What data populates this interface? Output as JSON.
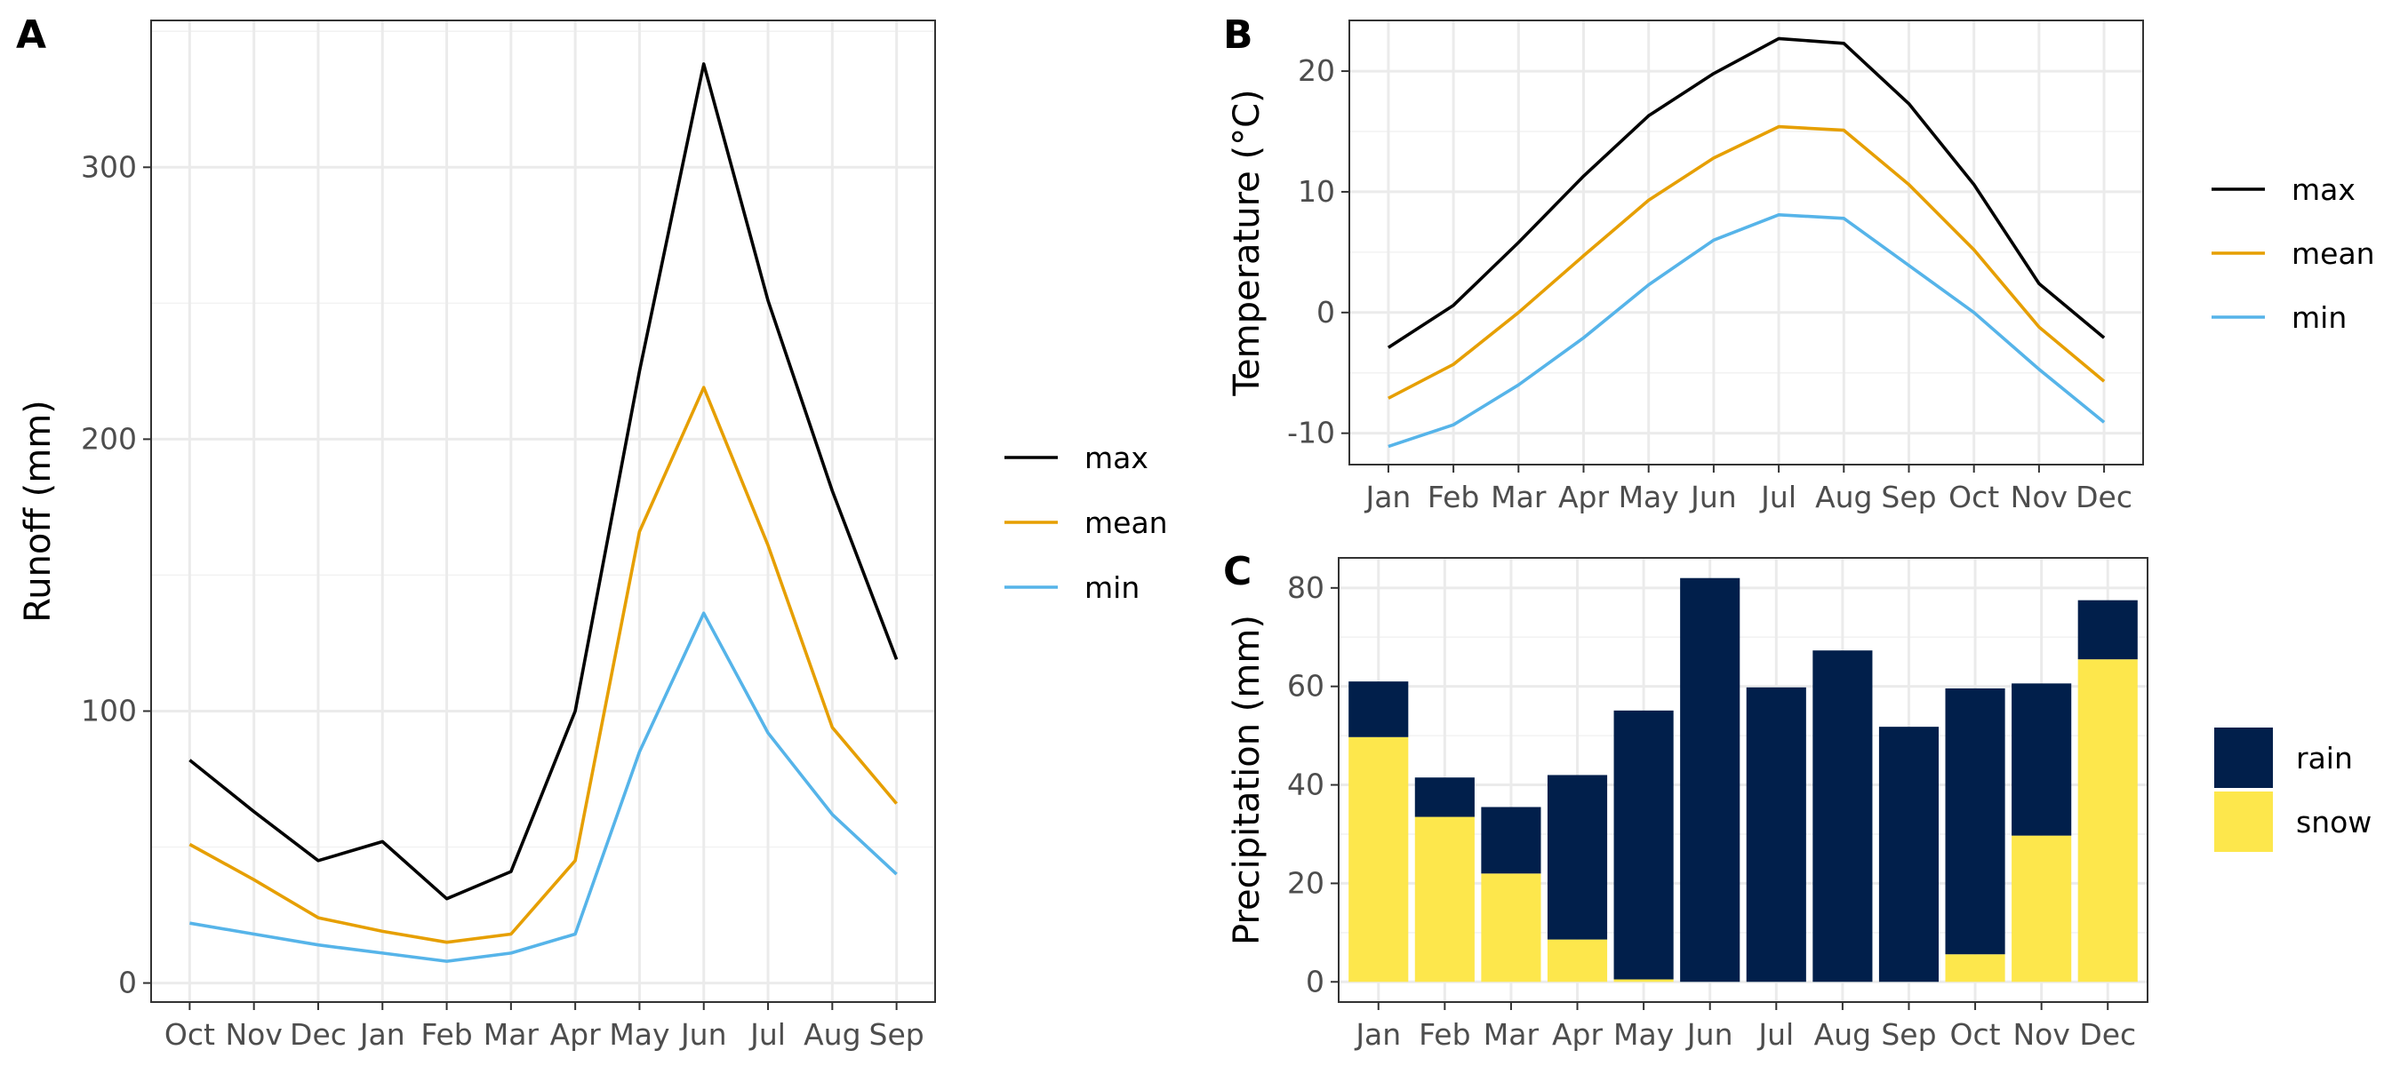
{
  "chart_data": [
    {
      "panel_label": "A",
      "type": "line",
      "categories": [
        "Oct",
        "Nov",
        "Dec",
        "Jan",
        "Feb",
        "Mar",
        "Apr",
        "May",
        "Jun",
        "Jul",
        "Aug",
        "Sep"
      ],
      "series": [
        {
          "name": "max",
          "color": "#000000",
          "values": [
            82,
            63,
            45,
            52,
            31,
            41,
            100,
            225,
            338,
            251,
            181,
            119
          ]
        },
        {
          "name": "mean",
          "color": "#E69F00",
          "values": [
            51,
            38,
            24,
            19,
            15,
            18,
            45,
            166,
            219,
            161,
            94,
            66
          ]
        },
        {
          "name": "min",
          "color": "#56B4E9",
          "values": [
            22,
            18,
            14,
            11,
            8,
            11,
            18,
            85,
            136,
            92,
            62,
            40
          ]
        }
      ],
      "xlabel": "",
      "ylabel": "Runoff (mm)",
      "ylim": [
        -7,
        354
      ],
      "yticks": [
        0,
        100,
        200,
        300
      ],
      "grid": true,
      "legend": "right"
    },
    {
      "panel_label": "B",
      "type": "line",
      "categories": [
        "Jan",
        "Feb",
        "Mar",
        "Apr",
        "May",
        "Jun",
        "Jul",
        "Aug",
        "Sep",
        "Oct",
        "Nov",
        "Dec"
      ],
      "series": [
        {
          "name": "max",
          "color": "#000000",
          "values": [
            -2.9,
            0.6,
            5.8,
            11.3,
            16.3,
            19.8,
            22.7,
            22.3,
            17.3,
            10.6,
            2.4,
            -2.1
          ]
        },
        {
          "name": "mean",
          "color": "#E69F00",
          "values": [
            -7.1,
            -4.3,
            0.0,
            4.7,
            9.3,
            12.8,
            15.4,
            15.1,
            10.6,
            5.2,
            -1.2,
            -5.7
          ]
        },
        {
          "name": "min",
          "color": "#56B4E9",
          "values": [
            -11.1,
            -9.3,
            -6.0,
            -2.1,
            2.3,
            6.0,
            8.1,
            7.8,
            3.9,
            0.0,
            -4.7,
            -9.1
          ]
        }
      ],
      "xlabel": "",
      "ylabel": "Temperature (°C)",
      "ylim": [
        -12.6,
        24.2
      ],
      "yticks": [
        -10,
        0,
        10,
        20
      ],
      "grid": true,
      "legend": "right"
    },
    {
      "panel_label": "C",
      "type": "bar",
      "stacked": true,
      "categories": [
        "Jan",
        "Feb",
        "Mar",
        "Apr",
        "May",
        "Jun",
        "Jul",
        "Aug",
        "Sep",
        "Oct",
        "Nov",
        "Dec"
      ],
      "series": [
        {
          "name": "snow",
          "color": "#FDE74C",
          "values": [
            49.7,
            33.5,
            22.0,
            8.6,
            0.5,
            0,
            0,
            0,
            0,
            5.6,
            29.7,
            65.5
          ]
        },
        {
          "name": "rain",
          "color": "#011F4B",
          "values": [
            11.3,
            8.0,
            13.5,
            33.4,
            54.6,
            82.0,
            59.8,
            67.3,
            51.8,
            54.0,
            30.9,
            12.0
          ]
        }
      ],
      "legend_order": [
        "rain",
        "snow"
      ],
      "xlabel": "",
      "ylabel": "Precipitation (mm)",
      "ylim": [
        -4.1,
        86.1
      ],
      "yticks": [
        0,
        20,
        40,
        60,
        80
      ],
      "grid": true,
      "legend": "right"
    }
  ]
}
